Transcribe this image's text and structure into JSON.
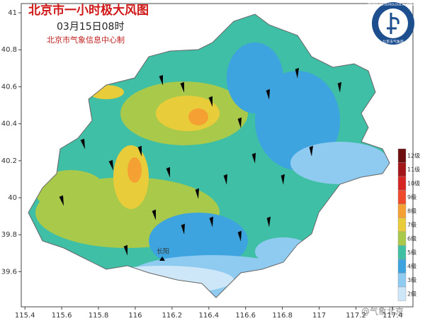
{
  "map": {
    "title": "北京市一小时极大风图",
    "subtitle": "03月15日08时",
    "credit": "北京市气象信息中心制",
    "xlim": [
      115.38,
      117.51
    ],
    "ylim": [
      39.41,
      41.05
    ],
    "xticks": [
      115.4,
      115.6,
      115.8,
      116,
      116.2,
      116.4,
      116.6,
      116.8,
      117,
      117.2,
      117.4
    ],
    "yticks": [
      39.6,
      39.8,
      40,
      40.2,
      40.4,
      40.6,
      40.8,
      41
    ],
    "legend": [
      {
        "label": "12级",
        "color": "#6e1010"
      },
      {
        "label": "11级",
        "color": "#a3161a"
      },
      {
        "label": "10级",
        "color": "#d62624"
      },
      {
        "label": "9级",
        "color": "#f04a2c"
      },
      {
        "label": "8级",
        "color": "#f5a033"
      },
      {
        "label": "7级",
        "color": "#e9cc3a"
      },
      {
        "label": "6级",
        "color": "#a9c94a"
      },
      {
        "label": "5级",
        "color": "#3fc0a2"
      },
      {
        "label": "4级",
        "color": "#3ea4df"
      },
      {
        "label": "3级",
        "color": "#8fcaf0"
      },
      {
        "label": "2级",
        "color": "#cde6f8"
      }
    ],
    "place": "长阳",
    "logo": "BEIJING METEOROLOGICAL SERVICE",
    "logo_sub": "北京市气象局",
    "watermark": "@气象北京"
  }
}
